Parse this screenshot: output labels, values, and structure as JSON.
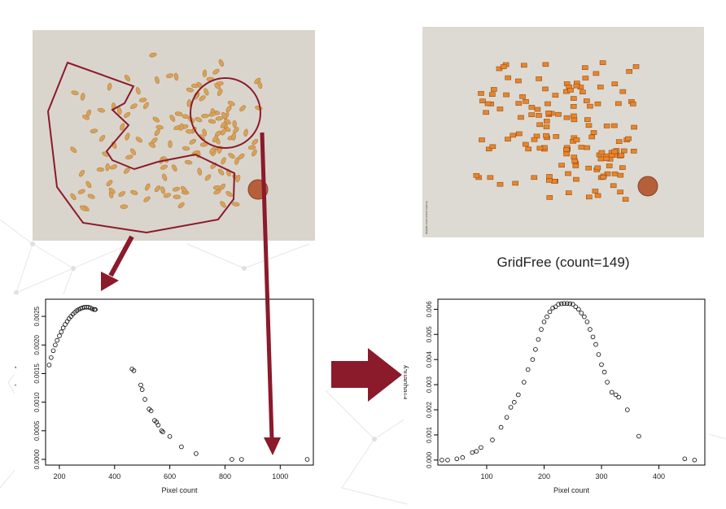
{
  "colors": {
    "accent": "#8b1a2b",
    "photo_background": "#d9d5cc",
    "seed": "#d9a15a",
    "seed_box": "#e8862a"
  },
  "right_caption": "GridFree (count=149)",
  "right_photo": {
    "vertical_caption": "[illegible small vertical caption]"
  },
  "chart_data": [
    {
      "type": "scatter",
      "title": "",
      "xlabel": "Pixel count",
      "ylabel": "Frequency",
      "xlim": [
        150,
        1120
      ],
      "ylim": [
        -0.0001,
        0.0028
      ],
      "xticks": [
        200,
        400,
        600,
        800,
        1000
      ],
      "yticks": [
        0.0,
        0.0005,
        0.001,
        0.0015,
        0.002,
        0.0025
      ],
      "ytick_labels": [
        "0.0000",
        "0.0005",
        "0.0010",
        "0.0015",
        "0.0020",
        "0.0025"
      ],
      "grid": false,
      "legend": "none",
      "series": [
        {
          "x": [
            163,
            170,
            178,
            185,
            192,
            200,
            207,
            214,
            221,
            228,
            235,
            242,
            249,
            256,
            263,
            270,
            277,
            284,
            291,
            298,
            305,
            312,
            320,
            327,
            330,
            463,
            470,
            495,
            500,
            510,
            525,
            532,
            545,
            552,
            558,
            570,
            575,
            600,
            642,
            695,
            825,
            860,
            1098
          ],
          "y": [
            0.00165,
            0.00178,
            0.0019,
            0.002,
            0.00208,
            0.00216,
            0.00223,
            0.0023,
            0.00236,
            0.00241,
            0.00246,
            0.0025,
            0.00254,
            0.00257,
            0.0026,
            0.00262,
            0.00264,
            0.00265,
            0.00266,
            0.00266,
            0.00266,
            0.00265,
            0.00263,
            0.00262,
            0.00262,
            0.00158,
            0.00155,
            0.0013,
            0.00122,
            0.00105,
            0.00088,
            0.00085,
            0.00068,
            0.00065,
            0.0006,
            0.0005,
            0.00048,
            0.0004,
            0.00022,
            0.0001,
            0.0,
            0.0,
            0.0
          ]
        }
      ]
    },
    {
      "type": "scatter",
      "title": "",
      "xlabel": "Pixel count",
      "ylabel": "Frequency",
      "xlim": [
        15,
        480
      ],
      "ylim": [
        -0.0002,
        0.0064
      ],
      "xticks": [
        100,
        200,
        300,
        400
      ],
      "yticks": [
        0.0,
        0.001,
        0.002,
        0.003,
        0.004,
        0.005,
        0.006
      ],
      "ytick_labels": [
        "0.000",
        "0.001",
        "0.002",
        "0.003",
        "0.004",
        "0.005",
        "0.006"
      ],
      "grid": false,
      "legend": "none",
      "series": [
        {
          "x": [
            22,
            32,
            48,
            58,
            75,
            82,
            90,
            110,
            125,
            135,
            142,
            148,
            155,
            165,
            172,
            180,
            185,
            190,
            195,
            200,
            205,
            210,
            215,
            220,
            225,
            230,
            235,
            240,
            245,
            250,
            255,
            260,
            265,
            270,
            275,
            280,
            285,
            290,
            295,
            300,
            305,
            310,
            318,
            325,
            330,
            345,
            365,
            445,
            462
          ],
          "y": [
            0.0,
            0.0,
            5e-05,
            0.0001,
            0.0003,
            0.00035,
            0.0005,
            0.0008,
            0.0013,
            0.0017,
            0.0021,
            0.0023,
            0.0026,
            0.0031,
            0.0036,
            0.004,
            0.0044,
            0.0048,
            0.0052,
            0.0055,
            0.0057,
            0.0059,
            0.00605,
            0.0061,
            0.0062,
            0.00622,
            0.00623,
            0.00623,
            0.00622,
            0.0062,
            0.0061,
            0.006,
            0.00585,
            0.0057,
            0.0055,
            0.0052,
            0.0049,
            0.0046,
            0.0042,
            0.0038,
            0.0035,
            0.0031,
            0.0027,
            0.0026,
            0.0025,
            0.002,
            0.00095,
            5e-05,
            0.0
          ]
        }
      ]
    }
  ]
}
